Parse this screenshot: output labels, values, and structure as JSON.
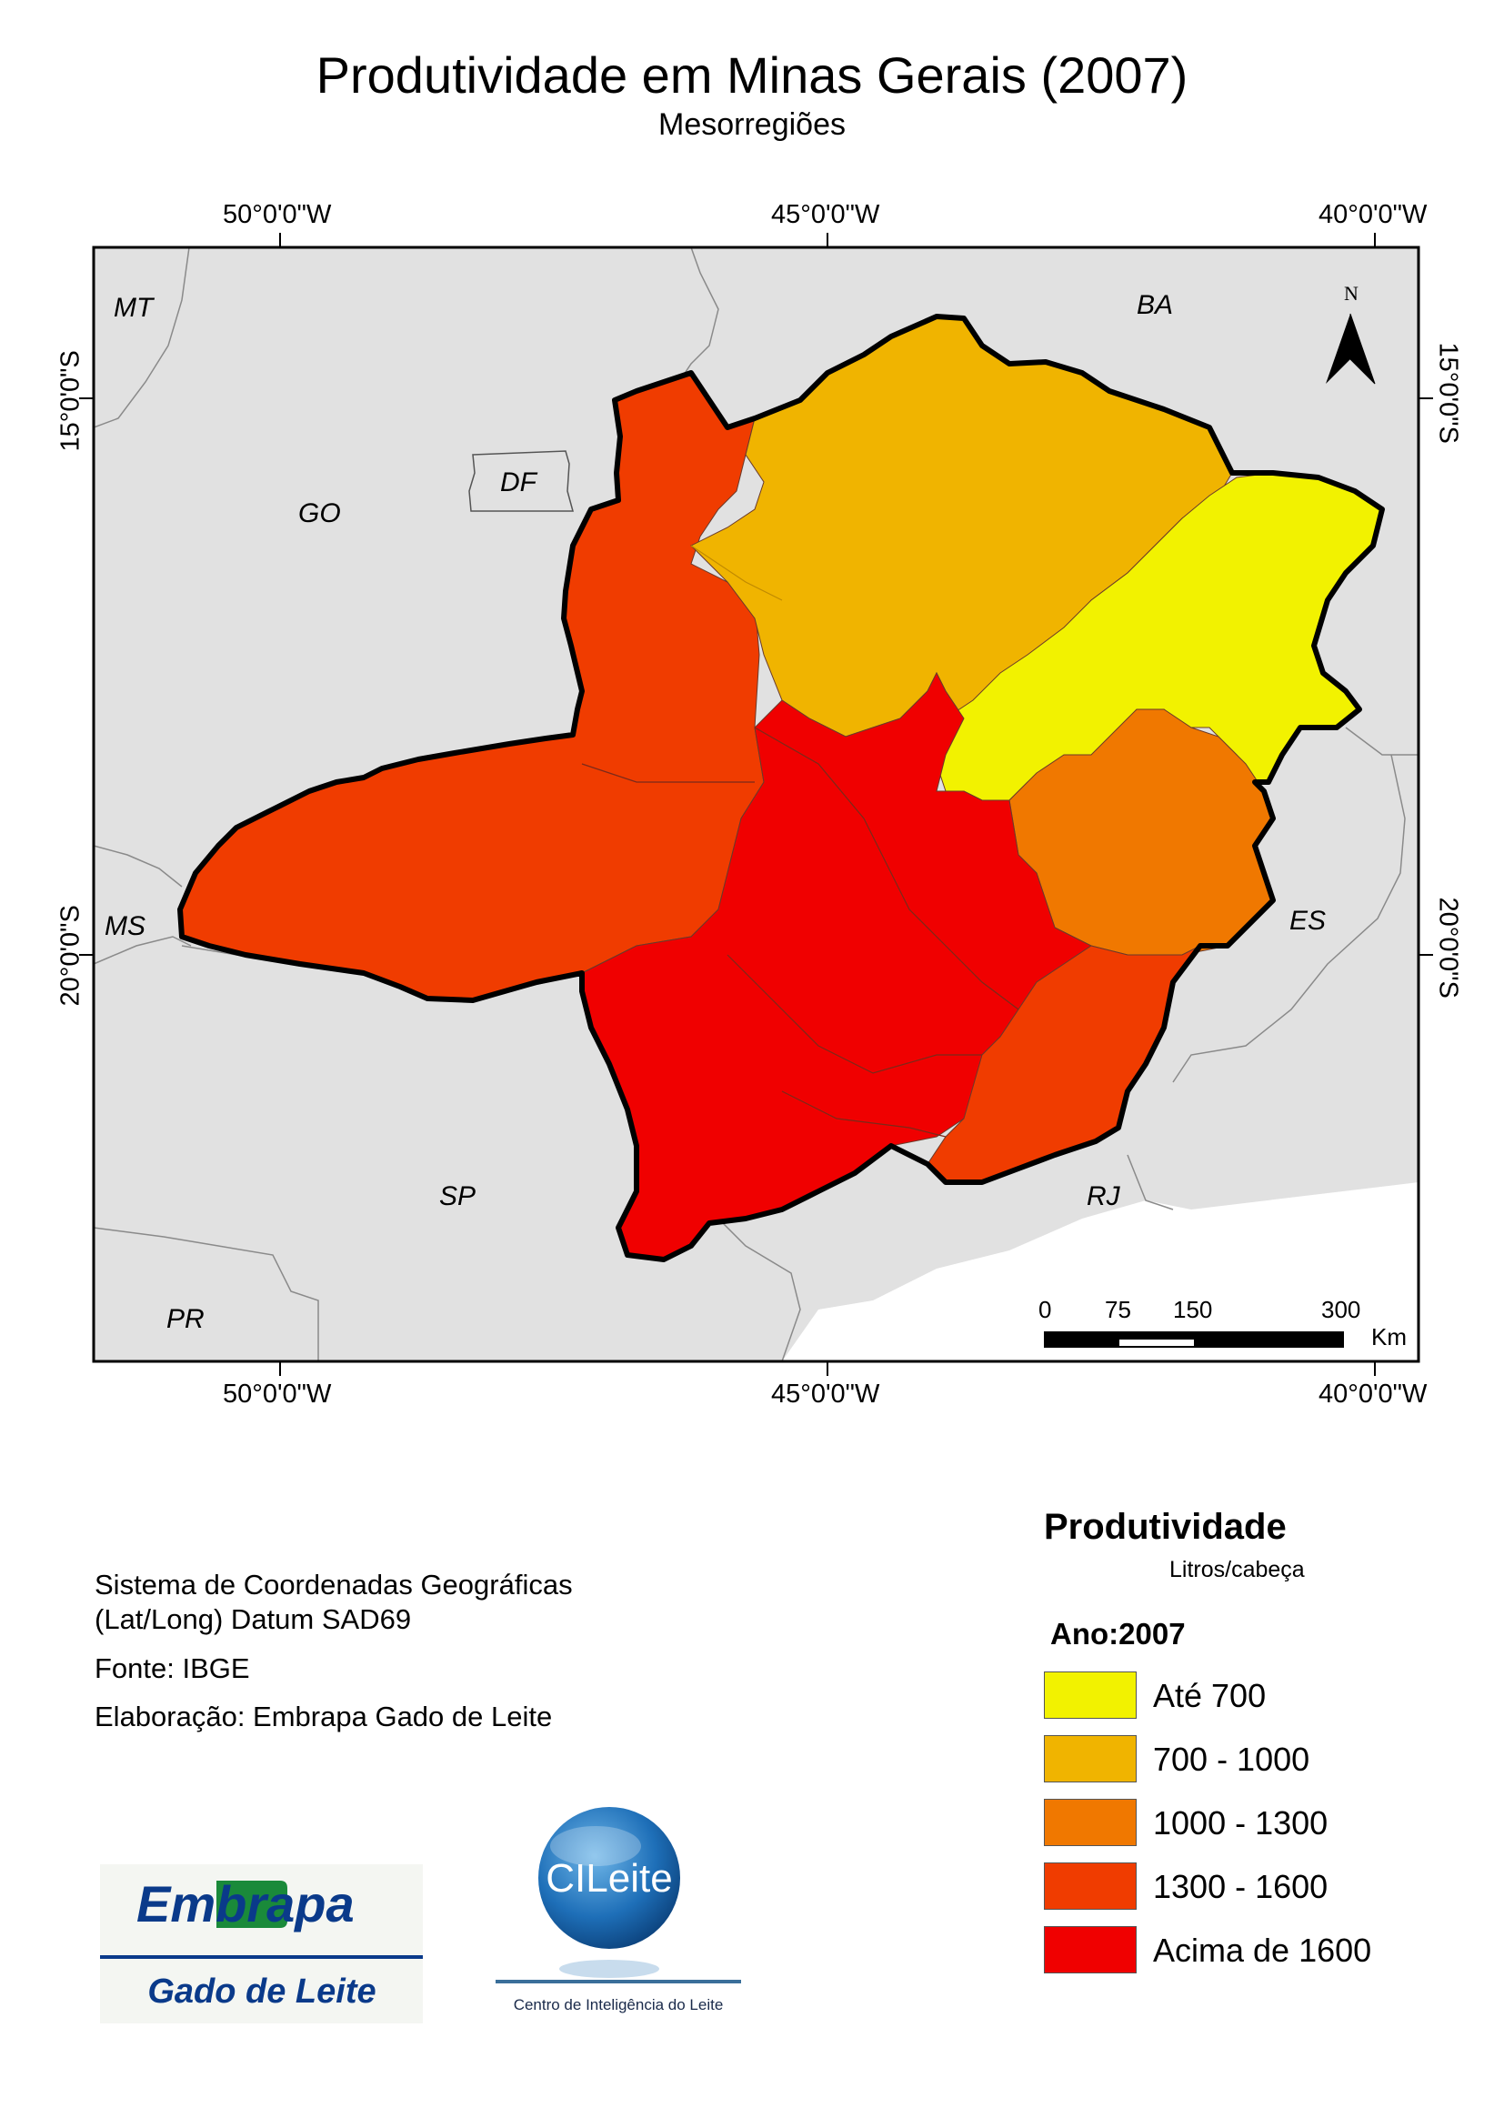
{
  "title": "Produtividade em Minas Gerais (2007)",
  "subtitle": "Mesorregiões",
  "graticule": {
    "top": [
      "50°0'0\"W",
      "45°0'0\"W",
      "40°0'0\"W"
    ],
    "bottom": [
      "50°0'0\"W",
      "45°0'0\"W",
      "40°0'0\"W"
    ],
    "left": [
      "15°0'0\"S",
      "20°0'0\"S"
    ],
    "right": [
      "15°0'0\"S",
      "20°0'0\"S"
    ]
  },
  "states": [
    "MT",
    "BA",
    "GO",
    "DF",
    "MS",
    "ES",
    "SP",
    "RJ",
    "PR"
  ],
  "north_arrow": "N",
  "scale_bar": {
    "ticks": [
      "0",
      "75",
      "150",
      "300"
    ],
    "unit": "Km"
  },
  "info": {
    "crs_line1": "Sistema de Coordenadas Geográficas",
    "crs_line2": "(Lat/Long) Datum SAD69",
    "source": "Fonte: IBGE",
    "credit": "Elaboração: Embrapa Gado de Leite"
  },
  "legend": {
    "title": "Produtividade",
    "unit": "Litros/cabeça",
    "year": "Ano:2007",
    "classes": [
      {
        "label": "Até 700",
        "color": "#f2f200"
      },
      {
        "label": "700 - 1000",
        "color": "#f0b400"
      },
      {
        "label": "1000 - 1300",
        "color": "#f07800"
      },
      {
        "label": "1300 - 1600",
        "color": "#f03c00"
      },
      {
        "label": "Acima de 1600",
        "color": "#f00000"
      }
    ]
  },
  "colors": {
    "background_states": "#e1e1e1",
    "map_border": "#000000"
  },
  "logos": {
    "embrapa_top": "Embrapa",
    "embrapa_bottom": "Gado de Leite",
    "cileite_badge": "CILeite",
    "cileite_caption": "Centro de Inteligência do Leite"
  }
}
